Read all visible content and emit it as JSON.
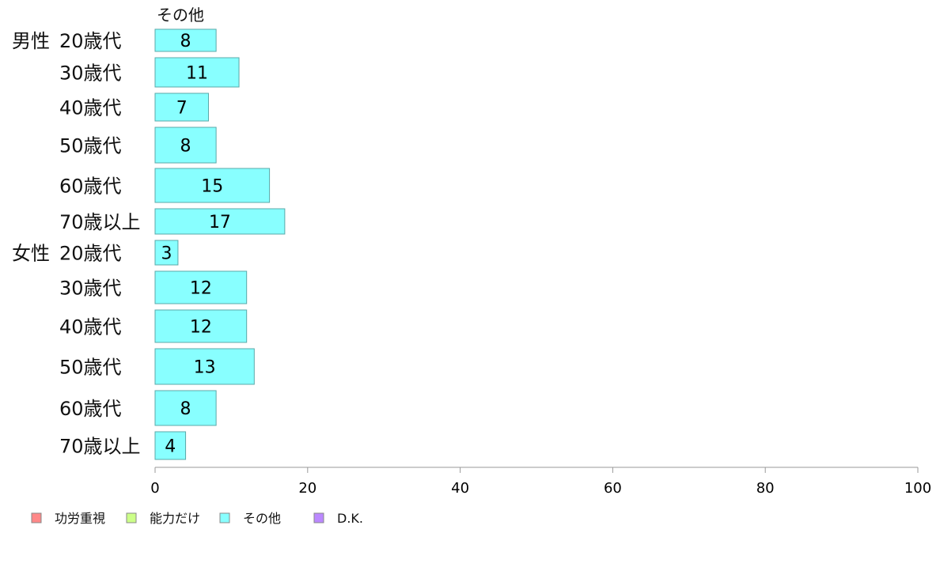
{
  "chart_data": {
    "type": "bar",
    "orientation": "horizontal",
    "stacked": true,
    "series_title": "その他",
    "groups": [
      {
        "label": "男性",
        "start": 0
      },
      {
        "label": "女性",
        "start": 6
      }
    ],
    "categories": [
      "20歳代",
      "30歳代",
      "40歳代",
      "50歳代",
      "60歳代",
      "70歳以上",
      "20歳代",
      "30歳代",
      "40歳代",
      "50歳代",
      "60歳代",
      "70歳以上"
    ],
    "series": [
      {
        "name": "その他",
        "values": [
          8,
          11,
          7,
          8,
          15,
          17,
          3,
          12,
          12,
          13,
          8,
          4
        ],
        "color": "#88ffff"
      }
    ],
    "xlim": [
      0,
      100
    ],
    "xticks": [
      "0",
      "20",
      "40",
      "60",
      "80",
      "100"
    ],
    "legend": {
      "placement": "bottom-left",
      "items": [
        {
          "name": "功労重視",
          "color": "#ff8888"
        },
        {
          "name": "能力だけ",
          "color": "#ccff88"
        },
        {
          "name": "その他",
          "color": "#88ffff"
        },
        {
          "name": "D.K.",
          "color": "#bb88ff"
        }
      ]
    },
    "grid": false
  }
}
